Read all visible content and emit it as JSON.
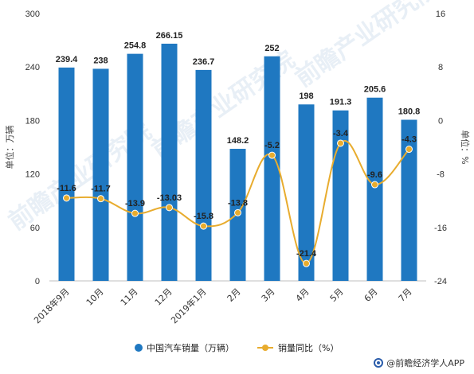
{
  "chart_data": {
    "type": "bar",
    "categories": [
      "2018年9月",
      "10月",
      "11月",
      "12月",
      "2019年1月",
      "2月",
      "3月",
      "4月",
      "5月",
      "6月",
      "7月"
    ],
    "series": [
      {
        "name": "中国汽车销量（万辆）",
        "type": "bar",
        "axis": "left",
        "values": [
          239.4,
          238,
          254.8,
          266.15,
          236.7,
          148.2,
          252,
          198,
          191.3,
          205.6,
          180.8
        ],
        "labels": [
          "239.4",
          "238",
          "254.8",
          "266.15",
          "236.7",
          "148.2",
          "252",
          "198",
          "191.3",
          "205.6",
          "180.8"
        ]
      },
      {
        "name": "销量同比（%）",
        "type": "line",
        "axis": "right",
        "values": [
          -11.6,
          -11.7,
          -13.9,
          -13.03,
          -15.8,
          -13.8,
          -5.2,
          -21.4,
          -3.4,
          -9.6,
          -4.3
        ],
        "labels": [
          "-11.6",
          "-11.7",
          "-13.9",
          "-13.03",
          "-15.8",
          "-13.8",
          "-5.2",
          "-21.4",
          "-3.4",
          "-9.6",
          "-4.3"
        ]
      }
    ],
    "ylabel": "单位：万辆",
    "y2label": "单位：%",
    "ylim": [
      0,
      300
    ],
    "yticks": [
      "0",
      "60",
      "120",
      "180",
      "240",
      "300"
    ],
    "y2lim": [
      -24,
      16
    ],
    "y2ticks": [
      "-24",
      "-16",
      "-8",
      "0",
      "8",
      "16"
    ],
    "legend_position": "bottom-center",
    "grid": false,
    "colors": {
      "bar": "#1f78c1",
      "line": "#e8ac2e"
    }
  },
  "watermark": {
    "text": "前瞻产业研究院"
  },
  "source": {
    "text": "@前瞻经济学人APP",
    "icon": "qianzhan-logo-icon"
  }
}
